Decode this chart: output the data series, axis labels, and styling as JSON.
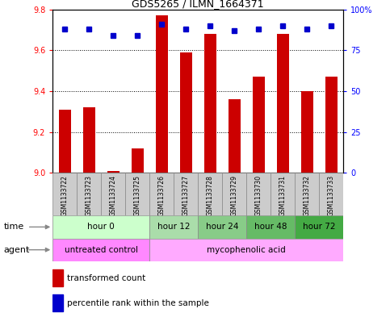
{
  "title": "GDS5265 / ILMN_1664371",
  "samples": [
    "GSM1133722",
    "GSM1133723",
    "GSM1133724",
    "GSM1133725",
    "GSM1133726",
    "GSM1133727",
    "GSM1133728",
    "GSM1133729",
    "GSM1133730",
    "GSM1133731",
    "GSM1133732",
    "GSM1133733"
  ],
  "bar_values": [
    9.31,
    9.32,
    9.01,
    9.12,
    9.77,
    9.59,
    9.68,
    9.36,
    9.47,
    9.68,
    9.4,
    9.47
  ],
  "percentile_values": [
    88,
    88,
    84,
    84,
    91,
    88,
    90,
    87,
    88,
    90,
    88,
    90
  ],
  "bar_base": 9.0,
  "ylim": [
    9.0,
    9.8
  ],
  "right_ylim": [
    0,
    100
  ],
  "bar_color": "#cc0000",
  "percentile_color": "#0000cc",
  "gridline_color": "#000000",
  "yticks_left": [
    9.0,
    9.2,
    9.4,
    9.6,
    9.8
  ],
  "yticks_right": [
    0,
    25,
    50,
    75,
    100
  ],
  "time_groups": [
    {
      "label": "hour 0",
      "start": 0,
      "end": 4,
      "color": "#ccffcc"
    },
    {
      "label": "hour 12",
      "start": 4,
      "end": 6,
      "color": "#aaddaa"
    },
    {
      "label": "hour 24",
      "start": 6,
      "end": 8,
      "color": "#88cc88"
    },
    {
      "label": "hour 48",
      "start": 8,
      "end": 10,
      "color": "#66bb66"
    },
    {
      "label": "hour 72",
      "start": 10,
      "end": 12,
      "color": "#44aa44"
    }
  ],
  "agent_groups": [
    {
      "label": "untreated control",
      "start": 0,
      "end": 4,
      "color": "#ff88ff"
    },
    {
      "label": "mycophenolic acid",
      "start": 4,
      "end": 12,
      "color": "#ffaaff"
    }
  ],
  "legend_bar_label": "transformed count",
  "legend_pct_label": "percentile rank within the sample",
  "sample_bg_color": "#cccccc",
  "arrow_color": "#888888"
}
